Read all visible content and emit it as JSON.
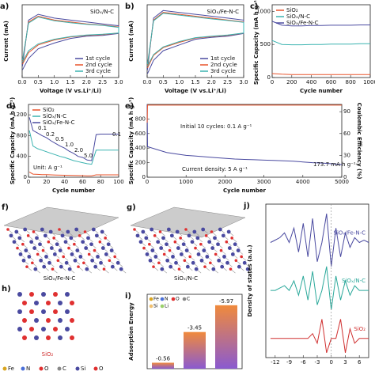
{
  "chart_data": [
    {
      "type": "line",
      "panel": "a)",
      "title": "SiOₓ/N-C",
      "xlabel": "Voltage (V vs.Li⁺/Li)",
      "ylabel": "Current (mA)",
      "legend": "lower right",
      "x": [
        0.01,
        0.2,
        0.5,
        1.0,
        1.5,
        2.0,
        2.5,
        3.0,
        3.0,
        2.5,
        2.0,
        1.5,
        1.0,
        0.5,
        0.2,
        0.01
      ],
      "xlim": [
        0,
        3
      ],
      "ylim": [
        -1.2,
        0.7
      ],
      "xticks": [
        {
          "value": 0,
          "label": "0.0"
        },
        {
          "value": 0.5,
          "label": "0.5"
        },
        {
          "value": 1,
          "label": "1.0"
        },
        {
          "value": 1.5,
          "label": "1.5"
        },
        {
          "value": 2,
          "label": "2.0"
        },
        {
          "value": 2.5,
          "label": "2.5"
        },
        {
          "value": 3,
          "label": "3.0"
        }
      ],
      "series": [
        {
          "name": "1st cycle",
          "color": "#4a4aa0",
          "values": [
            -0.9,
            0.3,
            0.45,
            0.35,
            0.3,
            0.25,
            0.2,
            0.15,
            -0.05,
            -0.1,
            -0.12,
            -0.18,
            -0.3,
            -0.45,
            -0.7,
            -1.0
          ]
        },
        {
          "name": "2nd cycle",
          "color": "#e8532b",
          "values": [
            -0.8,
            0.25,
            0.4,
            0.3,
            0.25,
            0.2,
            0.17,
            0.12,
            -0.04,
            -0.08,
            -0.1,
            -0.14,
            -0.22,
            -0.35,
            -0.55,
            -0.85
          ]
        },
        {
          "name": "3rd cycle",
          "color": "#3ab3b0",
          "values": [
            -0.75,
            0.22,
            0.38,
            0.28,
            0.23,
            0.19,
            0.16,
            0.11,
            -0.04,
            -0.07,
            -0.09,
            -0.13,
            -0.2,
            -0.32,
            -0.5,
            -0.8
          ]
        }
      ]
    },
    {
      "type": "line",
      "panel": "b)",
      "title": "SiOₓ/Fe-N-C",
      "xlabel": "Voltage (V vs.Li⁺/Li)",
      "ylabel": "Current (mA)",
      "legend": "lower right",
      "x": [
        0.01,
        0.2,
        0.5,
        1.0,
        1.5,
        2.0,
        2.5,
        3.0,
        3.0,
        2.5,
        2.0,
        1.5,
        1.0,
        0.5,
        0.2,
        0.01
      ],
      "xlim": [
        0,
        3
      ],
      "ylim": [
        -1.2,
        0.7
      ],
      "xticks": [
        {
          "value": 0,
          "label": "0.0"
        },
        {
          "value": 0.5,
          "label": "0.5"
        },
        {
          "value": 1,
          "label": "1.0"
        },
        {
          "value": 1.5,
          "label": "1.5"
        },
        {
          "value": 2,
          "label": "2.0"
        },
        {
          "value": 2.5,
          "label": "2.5"
        },
        {
          "value": 3,
          "label": "3.0"
        }
      ],
      "series": [
        {
          "name": "1st cycle",
          "color": "#4a4aa0",
          "values": [
            -1.0,
            0.35,
            0.55,
            0.5,
            0.45,
            0.4,
            0.35,
            0.3,
            -0.05,
            -0.12,
            -0.15,
            -0.2,
            -0.35,
            -0.5,
            -0.75,
            -1.1
          ]
        },
        {
          "name": "2nd cycle",
          "color": "#e8532b",
          "values": [
            -0.9,
            0.3,
            0.5,
            0.45,
            0.4,
            0.35,
            0.3,
            0.25,
            -0.04,
            -0.1,
            -0.13,
            -0.17,
            -0.28,
            -0.42,
            -0.62,
            -0.95
          ]
        },
        {
          "name": "3rd cycle",
          "color": "#3ab3b0",
          "values": [
            -0.85,
            0.28,
            0.48,
            0.43,
            0.38,
            0.33,
            0.29,
            0.24,
            -0.04,
            -0.09,
            -0.12,
            -0.16,
            -0.26,
            -0.4,
            -0.6,
            -0.9
          ]
        }
      ]
    },
    {
      "type": "line",
      "panel": "c)",
      "xlabel": "Cycle number",
      "ylabel": "Specific Capacity (mA h g⁻¹)",
      "legend": "upper left",
      "x": [
        0,
        100,
        200,
        300,
        400,
        500,
        600,
        700,
        800,
        900,
        1000
      ],
      "xlim": [
        0,
        1000
      ],
      "ylim": [
        0,
        1100
      ],
      "xticks": [
        0,
        200,
        400,
        600,
        800,
        1000
      ],
      "yticks": [
        0,
        500,
        1000
      ],
      "series": [
        {
          "name": "SiO₂",
          "color": "#e8532b",
          "values": [
            60,
            50,
            45,
            45,
            45,
            45,
            45,
            45,
            45,
            45,
            45
          ]
        },
        {
          "name": "SiOₓ/N-C",
          "color": "#3ab3b0",
          "values": [
            560,
            500,
            495,
            495,
            500,
            500,
            505,
            505,
            505,
            510,
            510
          ]
        },
        {
          "name": "SiOₓ/Fe-N-C",
          "color": "#4a4aa0",
          "values": [
            850,
            790,
            780,
            780,
            785,
            785,
            790,
            790,
            790,
            795,
            795
          ]
        }
      ]
    },
    {
      "type": "line",
      "panel": "d)",
      "xlabel": "Cycle number",
      "ylabel": "Specific Capacity (mA h g⁻¹)",
      "legend": "upper left",
      "annotations": [
        "0.1",
        "0.2",
        "0.5",
        "1.0",
        "2.0",
        "5.0",
        "0.1",
        "Unit: A g⁻¹"
      ],
      "x": [
        1,
        5,
        10,
        15,
        20,
        25,
        30,
        35,
        40,
        45,
        50,
        55,
        60,
        65,
        70,
        75,
        80,
        85,
        90,
        95,
        100
      ],
      "xlim": [
        0,
        100
      ],
      "ylim": [
        0,
        1400
      ],
      "xticks": [
        0,
        20,
        40,
        60,
        80,
        100
      ],
      "yticks": [
        0,
        400,
        800,
        1200
      ],
      "series": [
        {
          "name": "SiO₂",
          "color": "#e8532b",
          "values": [
            100,
            60,
            55,
            50,
            48,
            45,
            43,
            40,
            38,
            36,
            34,
            32,
            30,
            28,
            27,
            45,
            45,
            45,
            45,
            45,
            45
          ]
        },
        {
          "name": "SiOₓ/N-C",
          "color": "#3ab3b0",
          "values": [
            900,
            600,
            550,
            520,
            490,
            460,
            430,
            400,
            380,
            350,
            320,
            300,
            280,
            260,
            250,
            520,
            520,
            520,
            520,
            520,
            520
          ]
        },
        {
          "name": "SiOₓ/Fe-N-C",
          "color": "#4a4aa0",
          "values": [
            1150,
            900,
            850,
            800,
            760,
            700,
            650,
            600,
            560,
            500,
            460,
            400,
            380,
            330,
            320,
            820,
            830,
            830,
            830,
            830,
            830
          ]
        }
      ]
    },
    {
      "type": "line",
      "panel": "e)",
      "xlabel": "Cycle number",
      "ylabel": "Specific Capacity (mA h g⁻¹)",
      "y2label": "Coulombic Efficiency (%)",
      "annotations": [
        "Initial 10 cycles: 0.1 A g⁻¹",
        "173.7 mA h g⁻¹",
        "Current density: 5 A g⁻¹"
      ],
      "x": [
        0,
        10,
        250,
        500,
        750,
        1000,
        1250,
        1500,
        1750,
        2000,
        2250,
        2500,
        2750,
        3000,
        3250,
        3500,
        3750,
        4000,
        4250,
        4500,
        4750,
        5000
      ],
      "xlim": [
        0,
        5000
      ],
      "ylim": [
        0,
        1000
      ],
      "y2lim": [
        0,
        100
      ],
      "xticks": [
        0,
        1000,
        2000,
        3000,
        4000,
        5000
      ],
      "yticks": [
        0,
        200,
        400,
        600,
        800
      ],
      "y2ticks": [
        0,
        30,
        60,
        90
      ],
      "series": [
        {
          "color": "#4a4aa0",
          "values": [
            1000,
            420,
            380,
            340,
            320,
            300,
            290,
            280,
            270,
            260,
            250,
            245,
            240,
            235,
            230,
            225,
            220,
            210,
            200,
            195,
            185,
            174
          ]
        },
        {
          "color": "#e8532b",
          "axis": "y2",
          "values": [
            75,
            99,
            99,
            99,
            99,
            99,
            99,
            99,
            99,
            99,
            99,
            99,
            99,
            99,
            99,
            99,
            99,
            99,
            99,
            99,
            99,
            99
          ]
        }
      ]
    },
    {
      "type": "bar",
      "panel": "i)",
      "ylabel": "Adsorption Energy",
      "elements": [
        "Fe",
        "N",
        "O",
        "C",
        "Si",
        "Li"
      ],
      "element_colors": [
        "#d9a520",
        "#4a6fd8",
        "#e03030",
        "#888888",
        "#f0c070",
        "#9ad06a"
      ],
      "categories": [
        null,
        null,
        null
      ],
      "values": [
        -0.56,
        -3.45,
        -5.97
      ],
      "ylim": [
        0,
        -7
      ]
    },
    {
      "type": "line",
      "panel": "j)",
      "ylabel": "Density of states (a.u.)",
      "x": [
        -13,
        -12,
        -11,
        -10,
        -9,
        -8,
        -7,
        -6,
        -5,
        -4,
        -3,
        -2,
        -1,
        0,
        1,
        2,
        3,
        4,
        5,
        6,
        7,
        8
      ],
      "xlim": [
        -14,
        8
      ],
      "ylim": [
        0,
        32
      ],
      "xticks": [
        -12,
        -9,
        -6,
        -3,
        0,
        3,
        6
      ],
      "series": [
        {
          "name": "SiOₓ/Fe-N-C",
          "color": "#4a4aa0",
          "values": [
            24,
            24.5,
            25,
            26,
            24,
            27,
            22,
            28,
            21,
            29,
            20,
            24,
            30,
            19,
            27,
            21,
            26,
            23,
            25,
            24,
            24.5,
            24
          ]
        },
        {
          "name": "SiOₓ/N-C",
          "color": "#2aa89a",
          "values": [
            14,
            14,
            14.5,
            15,
            14,
            16,
            13,
            17,
            12,
            18,
            11,
            14,
            19,
            10,
            17,
            12,
            16,
            13,
            15,
            14,
            14,
            14
          ]
        },
        {
          "name": "SiO₂",
          "color": "#d03030",
          "values": [
            4,
            4,
            4,
            4,
            4,
            4,
            4,
            4,
            4,
            5,
            3,
            8,
            1,
            4,
            4,
            8,
            1,
            6,
            3,
            4,
            4,
            4
          ]
        }
      ]
    }
  ],
  "structures": {
    "f": {
      "panel": "f)",
      "label": "SiOₓ/Fe-N-C"
    },
    "g": {
      "panel": "g)",
      "label": "SiOₓ/N-C"
    },
    "h": {
      "panel": "h)",
      "label": "SiO₂",
      "legend": [
        "Fe",
        "N",
        "O",
        "C",
        "Si",
        "O"
      ]
    }
  }
}
